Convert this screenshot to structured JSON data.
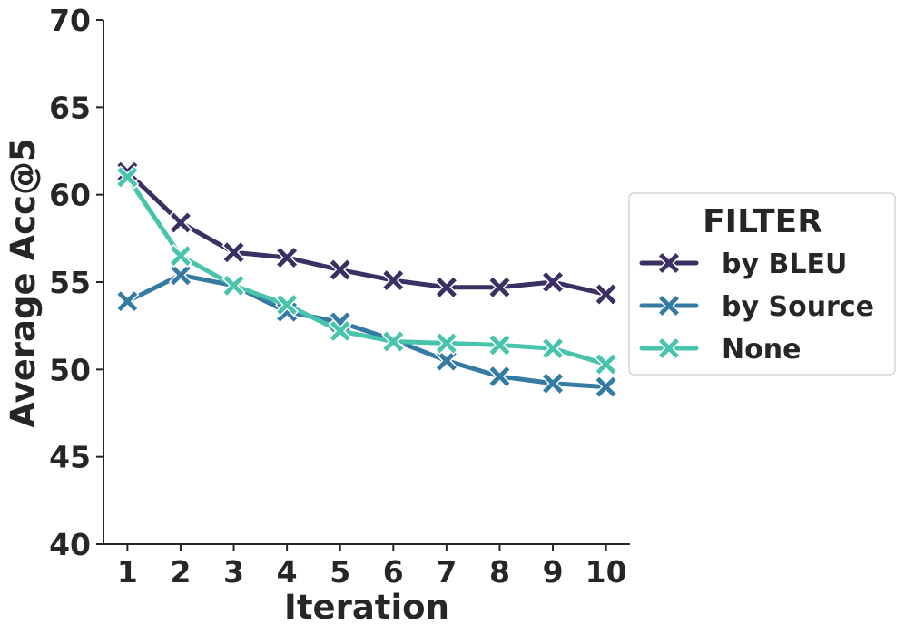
{
  "chart_data": {
    "type": "line",
    "xlabel": "Iteration",
    "ylabel": "Average Acc@5",
    "x": [
      1,
      2,
      3,
      4,
      5,
      6,
      7,
      8,
      9,
      10
    ],
    "ylim": [
      40,
      70
    ],
    "yticks": [
      40,
      45,
      50,
      55,
      60,
      65,
      70
    ],
    "grid": false,
    "legend": {
      "title": "FILTER",
      "position": "right"
    },
    "series": [
      {
        "name": "by BLEU",
        "color": "#3b2f64",
        "marker": "X",
        "values": [
          61.3,
          58.4,
          56.7,
          56.4,
          55.7,
          55.1,
          54.7,
          54.7,
          55.0,
          54.3
        ]
      },
      {
        "name": "by Source",
        "color": "#357aa2",
        "marker": "X",
        "values": [
          53.9,
          55.4,
          54.8,
          53.3,
          52.7,
          51.7,
          50.5,
          49.6,
          49.2,
          49.0
        ]
      },
      {
        "name": "None",
        "color": "#48c4ac",
        "marker": "X",
        "values": [
          61.0,
          56.5,
          54.8,
          53.7,
          52.2,
          51.6,
          51.5,
          51.4,
          51.2,
          50.3
        ]
      }
    ]
  }
}
